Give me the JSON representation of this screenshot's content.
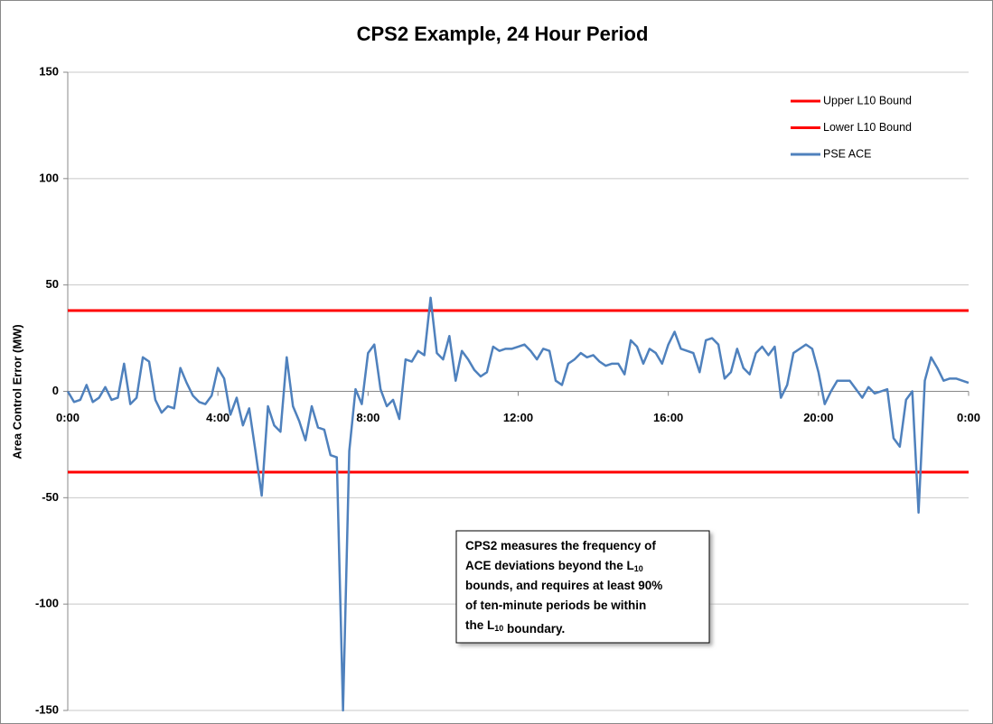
{
  "chart_data": {
    "type": "line",
    "title": "CPS2 Example, 24 Hour Period",
    "y_label": "Area Control Error (MW)",
    "xlim": [
      0,
      1440
    ],
    "xticks": [
      {
        "value": 0,
        "label": "0:00"
      },
      {
        "value": 240,
        "label": "4:00"
      },
      {
        "value": 480,
        "label": "8:00"
      },
      {
        "value": 720,
        "label": "12:00"
      },
      {
        "value": 960,
        "label": "16:00"
      },
      {
        "value": 1200,
        "label": "20:00"
      },
      {
        "value": 1440,
        "label": "0:00"
      }
    ],
    "ylim": [
      -150,
      150
    ],
    "yticks": [
      150,
      100,
      50,
      0,
      -50,
      -100,
      -150
    ],
    "grid": true,
    "legend": "upper right",
    "series": [
      {
        "name": "Upper L10 Bound",
        "color": "#ff0000",
        "x": [
          0,
          1440
        ],
        "values": [
          38,
          38
        ]
      },
      {
        "name": "Lower L10 Bound",
        "color": "#ff0000",
        "x": [
          0,
          1440
        ],
        "values": [
          -38,
          -38
        ]
      },
      {
        "name": "PSE ACE",
        "color": "#4f81bd",
        "x": [
          0,
          10,
          20,
          30,
          40,
          50,
          60,
          70,
          80,
          90,
          100,
          110,
          120,
          130,
          140,
          150,
          160,
          170,
          180,
          190,
          200,
          210,
          220,
          230,
          240,
          250,
          260,
          270,
          280,
          290,
          300,
          310,
          320,
          330,
          340,
          350,
          360,
          370,
          380,
          390,
          400,
          410,
          420,
          430,
          440,
          450,
          460,
          470,
          480,
          490,
          500,
          510,
          520,
          530,
          540,
          550,
          560,
          570,
          580,
          590,
          600,
          610,
          620,
          630,
          640,
          650,
          660,
          670,
          680,
          690,
          700,
          710,
          720,
          730,
          740,
          750,
          760,
          770,
          780,
          790,
          800,
          810,
          820,
          830,
          840,
          850,
          860,
          870,
          880,
          890,
          900,
          910,
          920,
          930,
          940,
          950,
          960,
          970,
          980,
          990,
          1000,
          1010,
          1020,
          1030,
          1040,
          1050,
          1060,
          1070,
          1080,
          1090,
          1100,
          1110,
          1120,
          1130,
          1140,
          1150,
          1160,
          1170,
          1180,
          1190,
          1200,
          1210,
          1220,
          1230,
          1240,
          1250,
          1260,
          1270,
          1280,
          1290,
          1300,
          1310,
          1320,
          1330,
          1340,
          1350,
          1360,
          1370,
          1380,
          1390,
          1400,
          1410,
          1420,
          1430,
          1440
        ],
        "values": [
          0,
          -5,
          -4,
          3,
          -5,
          -3,
          2,
          -4,
          -3,
          13,
          -6,
          -3,
          16,
          14,
          -4,
          -10,
          -7,
          -8,
          11,
          4,
          -2,
          -5,
          -6,
          -2,
          11,
          6,
          -11,
          -3,
          -16,
          -8,
          -28,
          -49,
          -7,
          -16,
          -19,
          16,
          -7,
          -14,
          -23,
          -7,
          -17,
          -18,
          -30,
          -31,
          -150,
          -28,
          1,
          -6,
          18,
          22,
          1,
          -7,
          -4,
          -13,
          15,
          14,
          19,
          17,
          44,
          18,
          15,
          26,
          5,
          19,
          15,
          10,
          7,
          9,
          21,
          19,
          20,
          20,
          21,
          22,
          19,
          15,
          20,
          19,
          5,
          3,
          13,
          15,
          18,
          16,
          17,
          14,
          12,
          13,
          13,
          8,
          24,
          21,
          13,
          20,
          18,
          13,
          22,
          28,
          20,
          19,
          18,
          9,
          24,
          25,
          22,
          6,
          9,
          20,
          11,
          8,
          18,
          21,
          17,
          21,
          -3,
          3,
          18,
          20,
          22,
          20,
          9,
          -6,
          0,
          5,
          5,
          5,
          1,
          -3,
          2,
          -1,
          0,
          1,
          -22,
          -26,
          -4,
          0,
          -57,
          5,
          16,
          11,
          5,
          6,
          6,
          5,
          4
        ]
      }
    ],
    "annotation": [
      [
        "CPS2 measures the frequency of"
      ],
      [
        "ACE deviations beyond the L",
        {
          "sub": "10"
        }
      ],
      [
        "bounds, and requires at least 90%"
      ],
      [
        "of ten-minute periods be within"
      ],
      [
        "the L",
        {
          "sub": "10"
        },
        " boundary."
      ]
    ]
  }
}
